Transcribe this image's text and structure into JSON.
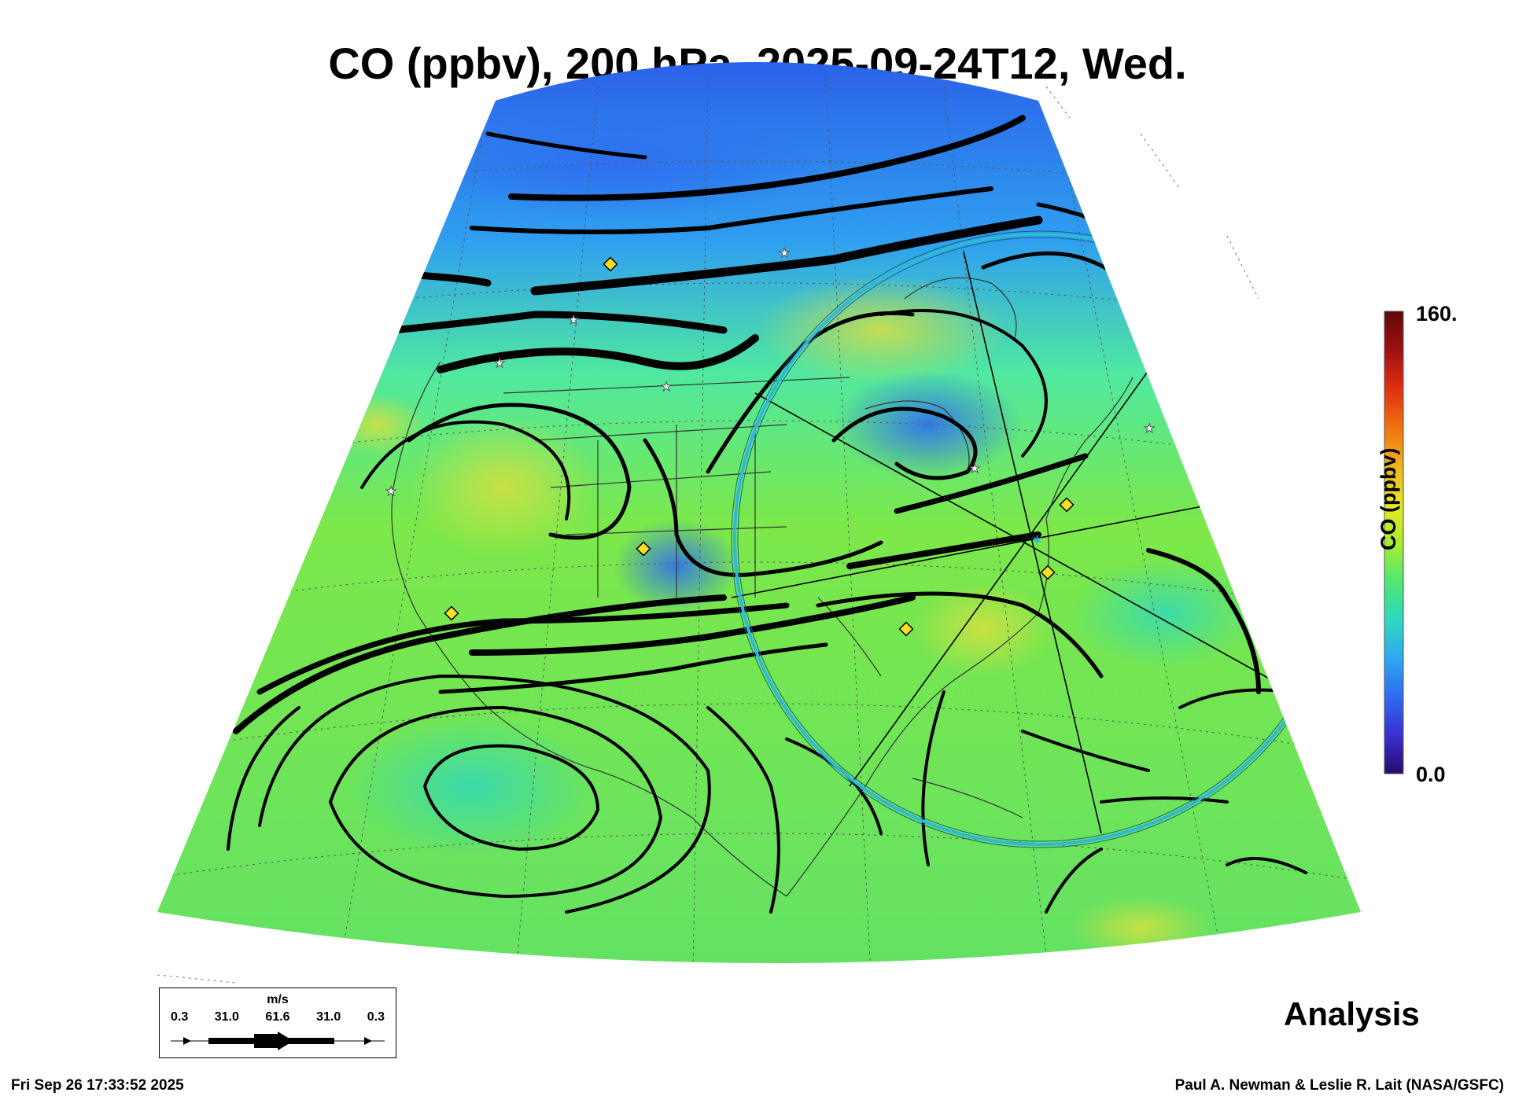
{
  "title": "CO (ppbv), 200 hPa, 2025-09-24T12, Wed.",
  "colorbar": {
    "max_label": "160.",
    "min_label": "0.0",
    "title": "CO (ppbv)",
    "colors": [
      "#2a0a6e",
      "#3a2fd0",
      "#2f6cf0",
      "#2fa8f0",
      "#2fd8c0",
      "#50e870",
      "#a8ec30",
      "#e8e820",
      "#f0b020",
      "#f07010",
      "#e03010",
      "#a01010",
      "#600808"
    ]
  },
  "legend": {
    "unit": "m/s",
    "ticks": [
      "0.3",
      "31.0",
      "61.6",
      "31.0",
      "0.3"
    ]
  },
  "analysis_label": "Analysis",
  "footer_left": "Fri Sep 26 17:33:52 2025",
  "footer_right": "Paul A. Newman & Leslie R. Lait (NASA/GSFC)",
  "map": {
    "field_colors": {
      "low": "#2f7ef0",
      "mid": "#4fdc9a",
      "base": "#58e060",
      "high": "#b4e43c",
      "peak": "#d8e040"
    },
    "marker_color": "#ffe020",
    "ring_color": "#2fb8d8",
    "streamline_color": "#000000"
  }
}
